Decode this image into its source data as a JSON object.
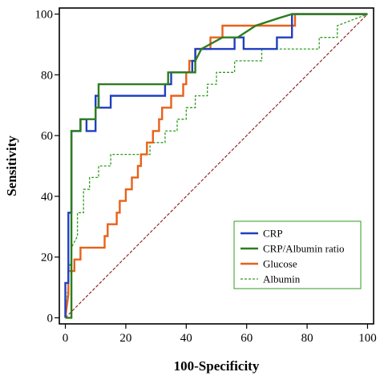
{
  "chart_data": {
    "type": "line",
    "title": "",
    "xlabel": "100-Specificity",
    "ylabel": "Sensitivity",
    "xlim": [
      0,
      100
    ],
    "ylim": [
      0,
      100
    ],
    "x_ticks": [
      "0",
      "20",
      "40",
      "60",
      "80",
      "100"
    ],
    "y_ticks": [
      "0",
      "20",
      "40",
      "60",
      "80",
      "100"
    ],
    "grid": false,
    "legend_position": "bottom-right",
    "series": [
      {
        "name": "CRP",
        "color": "#1f3fbf",
        "style": "solid",
        "x": [
          0,
          0,
          1,
          1,
          2,
          2,
          5,
          5,
          7,
          7,
          10,
          10,
          11,
          11,
          15,
          15,
          33,
          33,
          35,
          35,
          42,
          42,
          43,
          43,
          56,
          56,
          59,
          59,
          70,
          70,
          75,
          75,
          100
        ],
        "y": [
          0,
          11.5,
          11.5,
          34.6,
          34.6,
          61.5,
          61.5,
          65.4,
          65.4,
          61.5,
          61.5,
          73.1,
          73.1,
          69.2,
          69.2,
          73.1,
          73.1,
          76.9,
          76.9,
          80.8,
          80.8,
          84.6,
          84.6,
          88.5,
          88.5,
          92.3,
          92.3,
          88.5,
          88.5,
          92.3,
          92.3,
          100,
          100
        ]
      },
      {
        "name": "CRP/Albumin ratio",
        "color": "#2e7d1e",
        "style": "solid",
        "x": [
          0,
          2,
          2,
          5,
          5,
          10,
          10,
          11,
          11,
          34,
          34,
          43,
          43,
          45,
          52,
          57,
          63,
          70,
          75,
          100
        ],
        "y": [
          0,
          0,
          61.5,
          61.5,
          65.4,
          65.4,
          69.2,
          69.2,
          76.9,
          76.9,
          80.8,
          80.8,
          84.6,
          88.5,
          92.3,
          92.3,
          96.2,
          98.5,
          100,
          100
        ]
      },
      {
        "name": "Glucose",
        "color": "#e8611a",
        "style": "solid",
        "x": [
          0,
          1,
          1,
          3,
          3,
          5,
          5,
          13,
          13,
          14,
          14,
          17,
          17,
          18,
          18,
          20,
          20,
          22,
          22,
          24,
          24,
          25,
          25,
          27,
          27,
          29,
          29,
          31,
          31,
          32,
          32,
          35,
          35,
          39,
          39,
          40,
          40,
          41,
          41,
          43,
          43,
          44,
          44,
          48,
          48,
          52,
          52,
          76,
          76,
          100
        ],
        "y": [
          0,
          7.7,
          15.4,
          15.4,
          19.2,
          19.2,
          23.1,
          23.1,
          26.9,
          26.9,
          30.8,
          30.8,
          34.6,
          34.6,
          38.5,
          38.5,
          42.3,
          42.3,
          46.2,
          46.2,
          50,
          50,
          53.8,
          53.8,
          57.7,
          57.7,
          61.5,
          61.5,
          65.4,
          65.4,
          69.2,
          69.2,
          73.1,
          73.1,
          76.9,
          76.9,
          80.8,
          80.8,
          84.6,
          84.6,
          88.5,
          88.5,
          88.5,
          88.5,
          92.3,
          92.3,
          96.2,
          96.2,
          100,
          100
        ]
      },
      {
        "name": "Albumin",
        "color": "#2e9e1e",
        "style": "dotted",
        "x": [
          0,
          1,
          1,
          2,
          2,
          4,
          4,
          6,
          6,
          8,
          8,
          11,
          11,
          15,
          15,
          20,
          20,
          28,
          28,
          33,
          33,
          37,
          37,
          40,
          40,
          43,
          43,
          47,
          47,
          50,
          50,
          53,
          53,
          56,
          56,
          60,
          60,
          65,
          65,
          67,
          67,
          71,
          71,
          76,
          76,
          84,
          84,
          90,
          90,
          100
        ],
        "y": [
          0,
          11.5,
          15.4,
          19.2,
          23.1,
          26.9,
          34.6,
          34.6,
          42.3,
          42.3,
          46.2,
          46.2,
          50,
          50,
          53.8,
          53.8,
          53.8,
          53.8,
          57.7,
          57.7,
          61.5,
          61.5,
          65.4,
          65.4,
          69.2,
          69.2,
          73.1,
          73.1,
          76.9,
          76.9,
          80.8,
          80.8,
          80.8,
          80.8,
          84.6,
          84.6,
          84.6,
          84.6,
          88.5,
          88.5,
          88.5,
          88.5,
          88.5,
          88.5,
          88.5,
          88.5,
          92.3,
          92.3,
          96.2,
          100
        ]
      }
    ],
    "reference_line": {
      "color": "#8b1a1a",
      "style": "dashed",
      "x": [
        0,
        100
      ],
      "y": [
        0,
        100
      ]
    }
  }
}
